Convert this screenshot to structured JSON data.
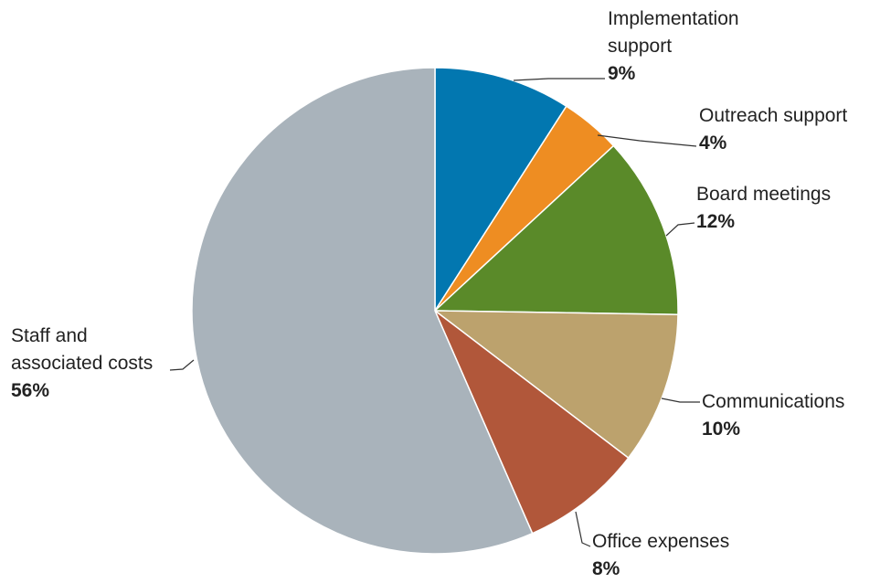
{
  "chart_data": {
    "type": "pie",
    "categories": [
      "Implementation support",
      "Outreach support",
      "Board meetings",
      "Communications",
      "Office expenses",
      "Staff and associated costs"
    ],
    "values": [
      9,
      4,
      12,
      10,
      8,
      56
    ],
    "value_labels": [
      "9%",
      "4%",
      "12%",
      "10%",
      "8%",
      "56%"
    ],
    "colors": [
      "#0277b0",
      "#ee8d22",
      "#5a8a29",
      "#bca26d",
      "#b1573a",
      "#a9b3bb"
    ]
  }
}
